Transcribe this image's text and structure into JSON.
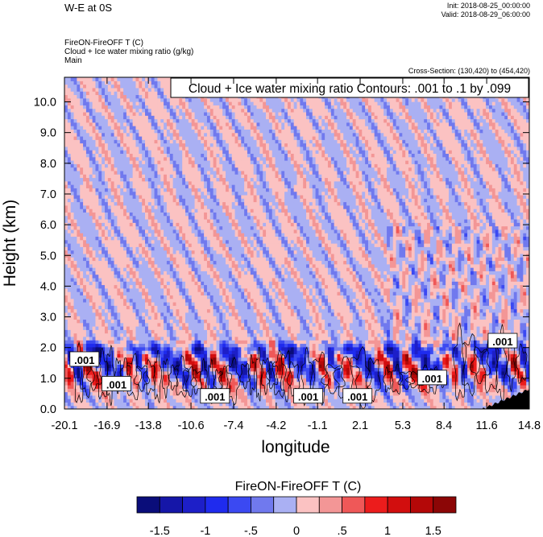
{
  "header": {
    "title": "W-E at 0S",
    "init": "Init: 2018-08-25_00:00:00",
    "valid": "Valid: 2018-08-29_06:00:00",
    "fields": [
      "FireON-FireOFF T   (C)",
      "Cloud + Ice water mixing ratio   (g/kg)",
      "Main"
    ],
    "cross_section": "Cross-Section: (130,420) to (454,420)"
  },
  "chart_data": {
    "type": "heatmap",
    "xlabel": "longitude",
    "ylabel": "Height (km)",
    "x_ticks": [
      "-20.1",
      "-16.9",
      "-13.8",
      "-10.6",
      "-7.4",
      "-4.2",
      "-1.1",
      "2.1",
      "5.3",
      "8.4",
      "11.6",
      "14.8"
    ],
    "y_ticks": [
      "0.0",
      "1.0",
      "2.0",
      "3.0",
      "4.0",
      "5.0",
      "6.0",
      "7.0",
      "8.0",
      "9.0",
      "10.0"
    ],
    "xlim": [
      -20.1,
      14.8
    ],
    "ylim": [
      0.0,
      10.8
    ],
    "contour_info": "Cloud + Ice water mixing ratio Contours: .001 to .1 by .099",
    "contour_labels": [
      {
        "text": ".001",
        "x": -18.6,
        "y": 1.6
      },
      {
        "text": ".001",
        "x": -16.2,
        "y": 0.8
      },
      {
        "text": ".001",
        "x": -8.8,
        "y": 0.4
      },
      {
        "text": ".001",
        "x": -1.8,
        "y": 0.4
      },
      {
        "text": ".001",
        "x": 1.9,
        "y": 0.4
      },
      {
        "text": ".001",
        "x": 7.5,
        "y": 1.0
      },
      {
        "text": ".001",
        "x": 12.8,
        "y": 2.2
      }
    ],
    "colorbar": {
      "title": "FireON-FireOFF T  (C)",
      "tick_labels": [
        "-1.5",
        "-1",
        "-.5",
        "0",
        ".5",
        "1",
        "1.5"
      ],
      "tick_values": [
        -1.5,
        -1.0,
        -0.5,
        0.0,
        0.5,
        1.0,
        1.5
      ],
      "levels": [
        -1.75,
        -1.5,
        -1.25,
        -1.0,
        -0.75,
        -0.5,
        -0.25,
        0.0,
        0.25,
        0.5,
        0.75,
        1.0,
        1.25,
        1.5,
        1.75
      ],
      "colors": [
        "#0a0d7a",
        "#1516a8",
        "#1d1fc8",
        "#1f2bee",
        "#3b49f2",
        "#7079ee",
        "#aab0f3",
        "#fbc2c2",
        "#f39696",
        "#ef5858",
        "#ec1c1c",
        "#d20e0e",
        "#b40808",
        "#8c0606"
      ]
    }
  }
}
